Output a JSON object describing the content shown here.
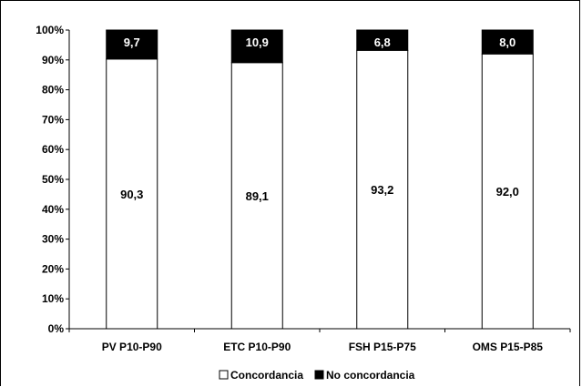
{
  "chart_data": {
    "type": "bar",
    "stacked": true,
    "categories": [
      "PV P10-P90",
      "ETC P10-P90",
      "FSH P15-P75",
      "OMS P15-P85"
    ],
    "series": [
      {
        "name": "Concordancia",
        "values": [
          90.3,
          89.1,
          93.2,
          92.0
        ],
        "labels": [
          "90,3",
          "89,1",
          "93,2",
          "92,0"
        ],
        "color": "#ffffff"
      },
      {
        "name": "No concordancia",
        "values": [
          9.7,
          10.9,
          6.8,
          8.0
        ],
        "labels": [
          "9,7",
          "10,9",
          "6,8",
          "8,0"
        ],
        "color": "#000000"
      }
    ],
    "yticks": [
      "0%",
      "10%",
      "20%",
      "30%",
      "40%",
      "50%",
      "60%",
      "70%",
      "80%",
      "90%",
      "100%"
    ],
    "ylim": [
      0,
      100
    ],
    "legend": "bottom",
    "grid": false,
    "title": "",
    "xlabel": "",
    "ylabel": ""
  }
}
